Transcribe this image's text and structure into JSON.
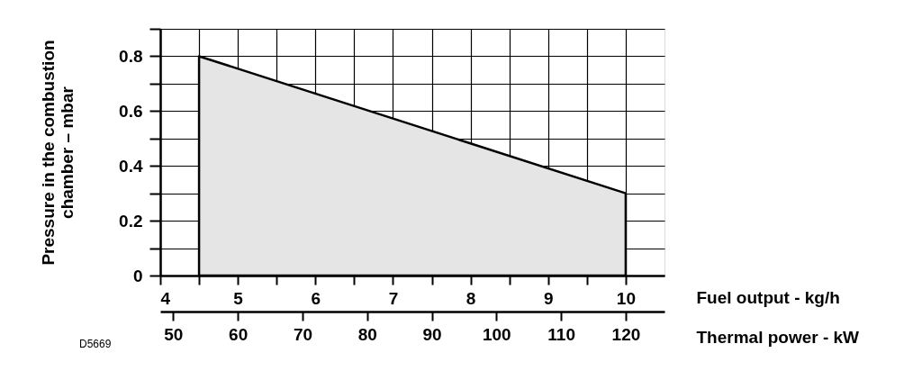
{
  "chart_data": {
    "type": "area",
    "xlabel": "Fuel output - kg/h",
    "x2label": "Thermal power - kW",
    "ylabel": "Pressure in the combustion\nchamber – mbar",
    "series": [
      {
        "color": "#e5e5e5",
        "x": [
          4.5,
          10
        ],
        "values": [
          0.8,
          0.3
        ]
      }
    ],
    "xlim": [
      4,
      10.5
    ],
    "xticks": [
      4,
      {
        "value": 4.5,
        "label": null
      },
      5,
      {
        "value": 5.5,
        "label": null
      },
      6,
      {
        "value": 6.5,
        "label": null
      },
      7,
      {
        "value": 7.5,
        "label": null
      },
      8,
      {
        "value": 8.5,
        "label": null
      },
      9,
      {
        "value": 9.5,
        "label": null
      },
      10
    ],
    "x2lim": [
      48,
      126
    ],
    "x2ticks": [
      50,
      60,
      70,
      80,
      90,
      100,
      110,
      120
    ],
    "ylim": [
      0,
      0.9
    ],
    "yticks": [
      0,
      {
        "value": 0.1,
        "label": null
      },
      0.2,
      {
        "value": 0.3,
        "label": null
      },
      0.4,
      {
        "value": 0.5,
        "label": null
      },
      0.6,
      {
        "value": 0.7,
        "label": null
      },
      0.8,
      {
        "value": 0.9,
        "label": null
      }
    ],
    "grid": true,
    "annotations": [
      "D5669"
    ]
  }
}
